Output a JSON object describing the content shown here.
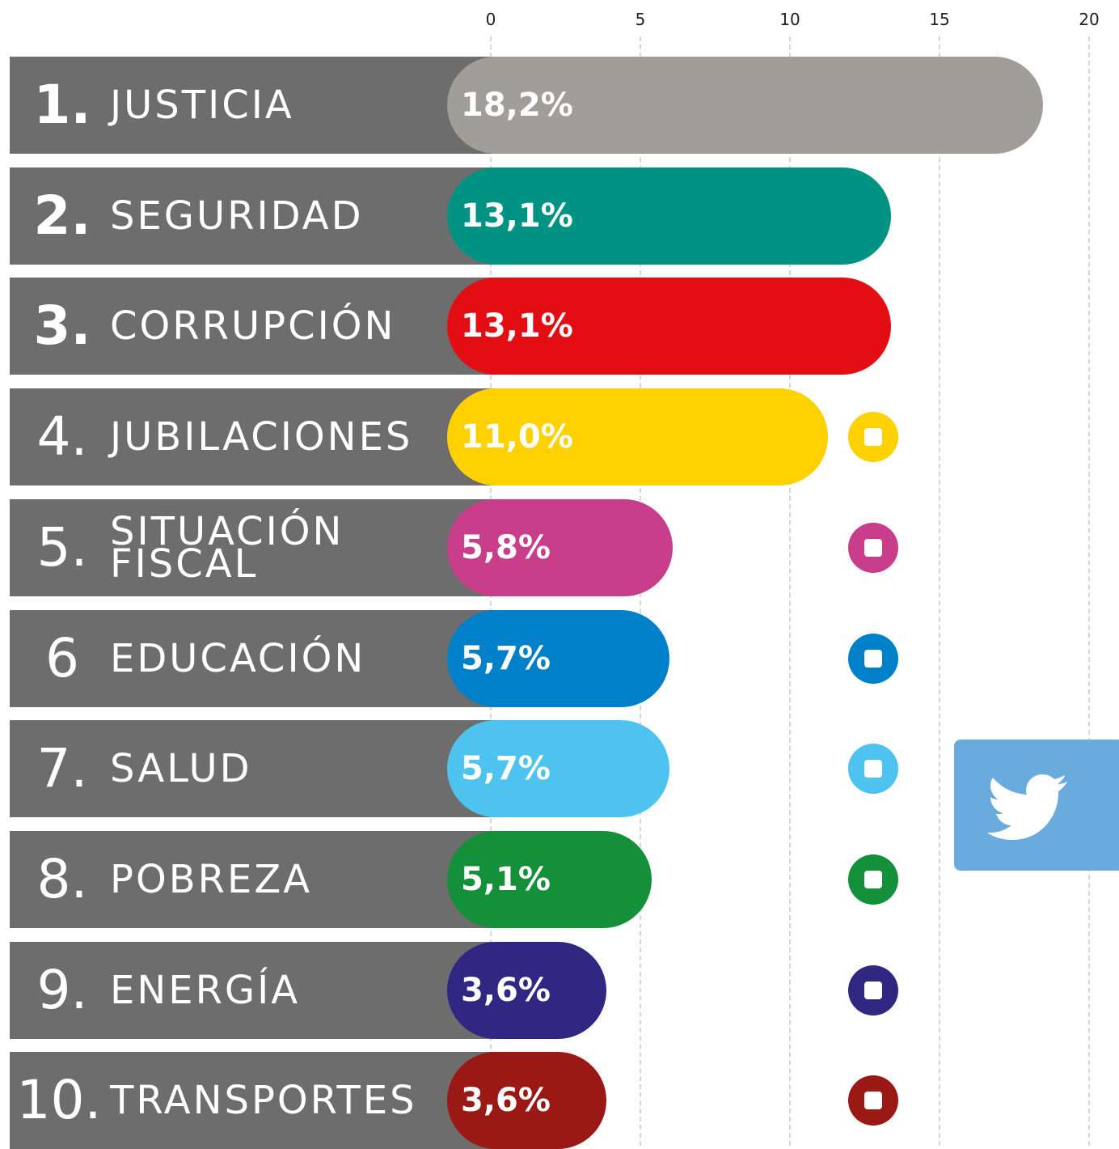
{
  "chart_data": {
    "type": "bar",
    "orientation": "horizontal",
    "ranks": [
      "1.",
      "2.",
      "3.",
      "4.",
      "5.",
      "6",
      "7.",
      "8.",
      "9.",
      "10."
    ],
    "categories": [
      "JUSTICIA",
      "SEGURIDAD",
      "CORRUPCIÓN",
      "JUBILACIONES",
      "SITUACIÓN\nFISCAL",
      "EDUCACIÓN",
      "SALUD",
      "POBREZA",
      "ENERGÍA",
      "TRANSPORTES"
    ],
    "values": [
      18.2,
      13.1,
      13.1,
      11.0,
      5.8,
      5.7,
      5.7,
      5.1,
      3.6,
      3.6
    ],
    "value_labels": [
      "18,2%",
      "13,1%",
      "13,1%",
      "11,0%",
      "5,8%",
      "5,7%",
      "5,7%",
      "5,1%",
      "3,6%",
      "3,6%"
    ],
    "colors": [
      "#a19d99",
      "#009384",
      "#e30e14",
      "#ffd100",
      "#c83e8b",
      "#0080c9",
      "#4fc3ef",
      "#148f3a",
      "#302782",
      "#9b1915"
    ],
    "xlim": [
      0,
      20
    ],
    "xticks": [
      0,
      5,
      10,
      15,
      20
    ],
    "grid": true
  }
}
